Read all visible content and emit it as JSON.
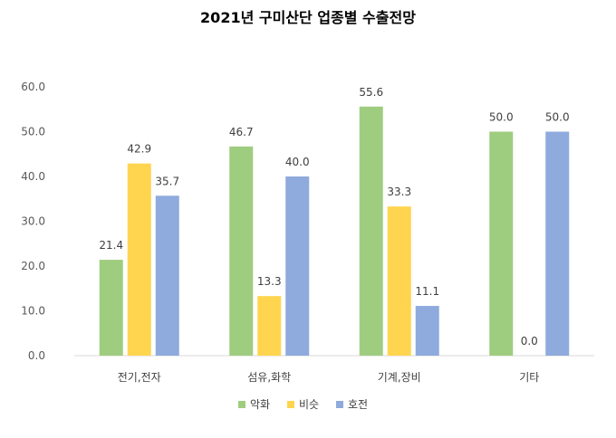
{
  "chart_data": {
    "type": "bar",
    "title": "2021년 구미산단 업종별 수출전망",
    "categories": [
      "전기,전자",
      "섬유,화학",
      "기계,장비",
      "기타"
    ],
    "series": [
      {
        "name": "악화",
        "color": "#9fcd7f",
        "values": [
          21.4,
          46.7,
          55.6,
          50.0
        ],
        "labels": [
          "21.4",
          "46.7",
          "55.6",
          "50.0"
        ]
      },
      {
        "name": "비슷",
        "color": "#ffd54f",
        "values": [
          42.9,
          13.3,
          33.3,
          0.0
        ],
        "labels": [
          "42.9",
          "13.3",
          "33.3",
          "0.0"
        ]
      },
      {
        "name": "호전",
        "color": "#8faadc",
        "values": [
          35.7,
          40.0,
          11.1,
          50.0
        ],
        "labels": [
          "35.7",
          "40.0",
          "11.1",
          "50.0"
        ]
      }
    ],
    "yticks": [
      "0.0",
      "10.0",
      "20.0",
      "30.0",
      "40.0",
      "50.0",
      "60.0"
    ],
    "ylim": [
      0,
      60
    ],
    "legend_position": "bottom",
    "grid": false
  }
}
